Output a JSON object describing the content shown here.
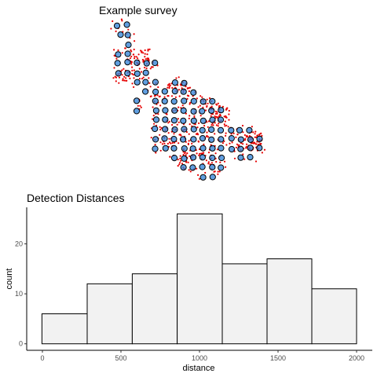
{
  "chart_data": [
    {
      "type": "scatter",
      "title": "Example survey",
      "description_free": true,
      "series": [
        {
          "marker": "circle",
          "stroke": "#000000",
          "fill": "#2b7fd6"
        },
        {
          "marker": "point",
          "fill": "#e60000"
        }
      ]
    },
    {
      "type": "bar",
      "subtype": "histogram",
      "title": "Detection Distances",
      "xlabel": "distance",
      "ylabel": "count",
      "bins": [
        {
          "start": -3,
          "end": 285,
          "count": 6
        },
        {
          "start": 285,
          "end": 572,
          "count": 12
        },
        {
          "start": 572,
          "end": 858,
          "count": 14
        },
        {
          "start": 858,
          "end": 1145,
          "count": 26
        },
        {
          "start": 1145,
          "end": 1430,
          "count": 16
        },
        {
          "start": 1430,
          "end": 1715,
          "count": 17
        },
        {
          "start": 1715,
          "end": 2000,
          "count": 11
        }
      ],
      "xticks": [
        "0",
        "500",
        "1000",
        "1500",
        "2000"
      ],
      "yticks": [
        "0",
        "10",
        "20"
      ],
      "xlim": [
        -100,
        2100
      ],
      "ylim": [
        -1.3,
        27.3
      ],
      "grid": false,
      "bar_fill": "#f2f2f2",
      "bar_stroke": "#000000"
    }
  ]
}
